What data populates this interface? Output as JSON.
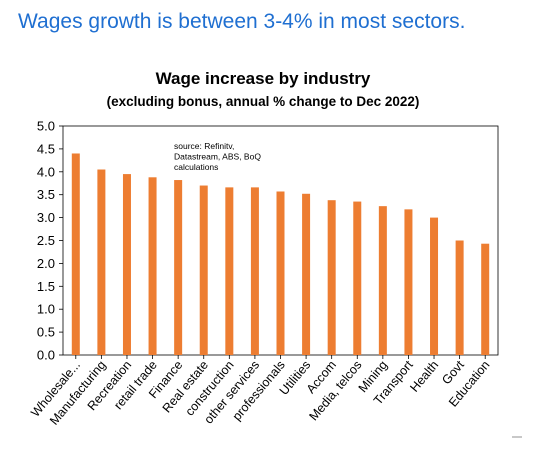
{
  "headline": "Wages growth is between 3-4% in most sectors.",
  "chart_data": {
    "type": "bar",
    "title": "Wage increase by industry",
    "subtitle": "(excluding bonus,  annual % change to Dec 2022)",
    "source_note": [
      "source: Refinitv,",
      "Datastream, ABS, BoQ",
      "calculations"
    ],
    "categories": [
      "Wholesale...",
      "Manufacturing",
      "Recreation",
      "retail trade",
      "Finance",
      "Real estate",
      "construction",
      "other services",
      "professionals",
      "Utilities",
      "Accom",
      "Media, telcos",
      "Mining",
      "Transport",
      "Health",
      "Govt",
      "Education"
    ],
    "values": [
      4.4,
      4.05,
      3.95,
      3.88,
      3.82,
      3.7,
      3.66,
      3.66,
      3.57,
      3.52,
      3.38,
      3.35,
      3.25,
      3.18,
      3.0,
      2.5,
      2.43
    ],
    "yticks": [
      "0.0",
      "0.5",
      "1.0",
      "1.5",
      "2.0",
      "2.5",
      "3.0",
      "3.5",
      "4.0",
      "4.5",
      "5.0"
    ],
    "ylim": [
      0,
      5
    ],
    "bar_color": "#ed7d31",
    "grid": false,
    "legend": "none"
  }
}
